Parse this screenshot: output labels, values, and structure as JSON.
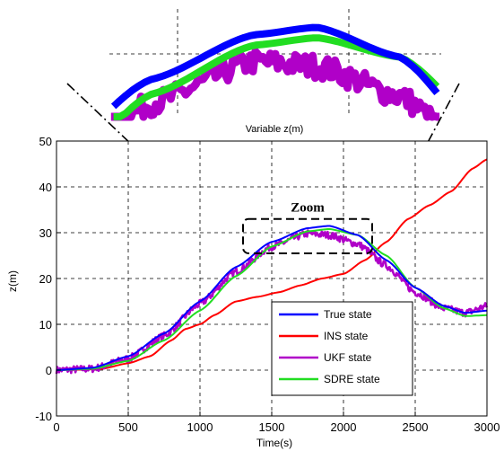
{
  "chart_data": {
    "type": "line",
    "xlabel": "Time(s)",
    "ylabel": "z(m)",
    "xlim": [
      0,
      3000
    ],
    "ylim": [
      -10,
      50
    ],
    "xticks": [
      0,
      500,
      1000,
      1500,
      2000,
      2500,
      3000
    ],
    "yticks": [
      -10,
      0,
      10,
      20,
      30,
      40,
      50
    ],
    "grid": true,
    "legend_position": "bottom-right",
    "zoom_label": "Zoom",
    "inset_caption": "Variable z(m)",
    "zoom_region": {
      "x": [
        1300,
        2200
      ],
      "y": [
        25.5,
        33
      ]
    },
    "series": [
      {
        "name": "True state",
        "color": "#0000ff",
        "x": [
          0,
          250,
          500,
          750,
          1000,
          1250,
          1500,
          1750,
          1900,
          2100,
          2300,
          2500,
          2700,
          2850,
          3000
        ],
        "y": [
          0,
          0.5,
          3,
          8,
          15,
          22.5,
          28,
          31,
          31.5,
          29.5,
          24,
          18,
          14,
          12.5,
          13
        ]
      },
      {
        "name": "INS state",
        "color": "#ff0000",
        "x": [
          0,
          300,
          500,
          650,
          800,
          900,
          1000,
          1100,
          1250,
          1400,
          1550,
          1700,
          1850,
          2000,
          2150,
          2300,
          2450,
          2600,
          2750,
          2900,
          3000
        ],
        "y": [
          0,
          0.2,
          1.5,
          3,
          6.5,
          9,
          10,
          12,
          15,
          16,
          17,
          18.5,
          20,
          21,
          24,
          28,
          33,
          36,
          39,
          44,
          46
        ]
      },
      {
        "name": "UKF state",
        "color": "#b000c8",
        "x": [
          0,
          250,
          500,
          750,
          1000,
          1250,
          1500,
          1750,
          1900,
          2100,
          2300,
          2500,
          2700,
          2850,
          3000
        ],
        "y": [
          0,
          0.3,
          2.5,
          7.5,
          14.5,
          21.5,
          27,
          29.8,
          29.5,
          27.5,
          22.8,
          17,
          13.5,
          12.5,
          14
        ]
      },
      {
        "name": "SDRE state",
        "color": "#22dd22",
        "x": [
          0,
          250,
          500,
          750,
          1000,
          1250,
          1500,
          1750,
          1900,
          2100,
          2300,
          2500,
          2700,
          2850,
          3000
        ],
        "y": [
          0,
          0.3,
          2,
          6.5,
          13,
          20.5,
          27,
          30.3,
          30.8,
          29.5,
          25,
          18,
          13.5,
          11.8,
          12
        ]
      }
    ]
  }
}
